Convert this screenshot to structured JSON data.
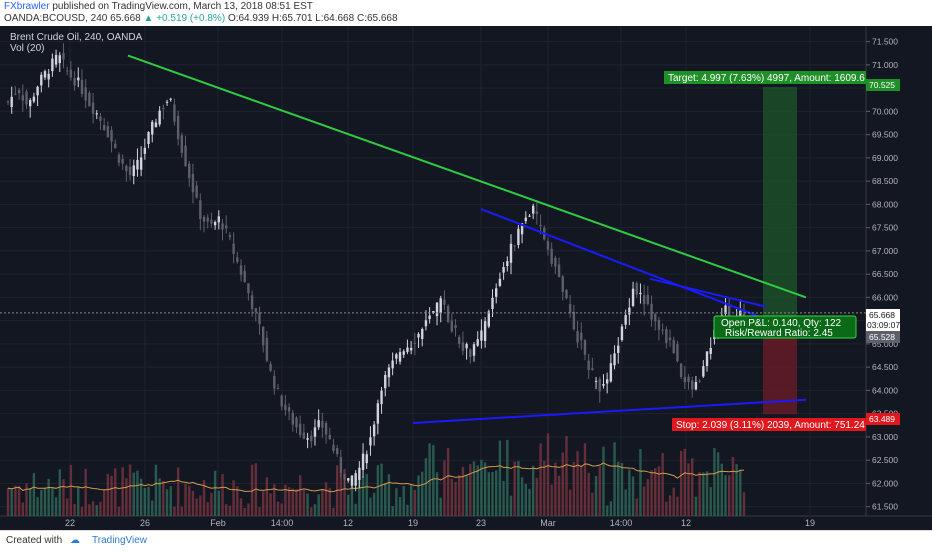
{
  "header": {
    "author": "FXbrawler",
    "published": "published on TradingView.com, March 13, 2018 08:51 EST",
    "symbol": "OANDA:BCOUSD, 240",
    "last": "65.668",
    "change": "▲ +0.519 (+0.8%)",
    "o": "O:64.939",
    "h": "H:65.701",
    "l": "L:64.668",
    "c": "C:65.668"
  },
  "legend": {
    "title": "Brent Crude Oil, 240, OANDA",
    "volume": "Vol (20)"
  },
  "footer": {
    "created": "Created with",
    "brand": "TradingView"
  },
  "colors": {
    "background": "#131722",
    "up": "#d1d4dc",
    "down": "#5d606b",
    "trend_green": "#2ecc40",
    "trend_blue": "#1a1aff",
    "target": "#1f8f27",
    "stop": "#e0181e"
  },
  "chart_data": {
    "type": "candlestick",
    "x_ticks": [
      "22",
      "26",
      "Feb",
      "14:00",
      "12",
      "19",
      "23",
      "Mar",
      "14:00",
      "12",
      "19"
    ],
    "y_ticks": [
      "61.500",
      "62.000",
      "62.500",
      "63.000",
      "63.500",
      "64.000",
      "64.500",
      "65.000",
      "65.500",
      "66.000",
      "66.500",
      "67.000",
      "67.500",
      "68.000",
      "68.500",
      "69.000",
      "69.500",
      "70.000",
      "70.500",
      "71.000",
      "71.500"
    ],
    "ylim": [
      61.3,
      71.75
    ],
    "close_path": [
      70.2,
      70.5,
      70.1,
      70.6,
      70.9,
      71.2,
      70.8,
      70.6,
      70.2,
      69.9,
      69.5,
      69.0,
      68.6,
      68.9,
      69.5,
      70.0,
      70.3,
      69.4,
      68.6,
      67.8,
      67.5,
      67.7,
      67.2,
      66.6,
      66.0,
      65.3,
      64.4,
      63.8,
      63.4,
      63.1,
      63.0,
      63.3,
      62.9,
      62.3,
      62.0,
      62.4,
      63.0,
      64.1,
      64.5,
      64.9,
      65.0,
      65.3,
      65.6,
      65.9,
      65.4,
      65.0,
      64.8,
      65.2,
      65.9,
      66.6,
      67.1,
      67.6,
      67.9,
      67.4,
      66.8,
      66.2,
      65.4,
      64.9,
      64.3,
      64.0,
      64.6,
      65.4,
      66.2,
      66.0,
      65.5,
      65.2,
      64.9,
      64.2,
      64.0,
      64.5,
      65.2,
      65.8,
      65.5,
      65.668
    ],
    "trendlines": [
      {
        "color": "green",
        "from": [
          "26",
          71.2
        ],
        "to": [
          "19",
          66.0
        ]
      },
      {
        "color": "blue",
        "from": [
          "23",
          67.9
        ],
        "to": [
          "19",
          65.2
        ]
      },
      {
        "color": "blue",
        "from": [
          "Mar",
          66.4
        ],
        "to": [
          "12",
          65.8
        ]
      },
      {
        "color": "blue",
        "from": [
          "12",
          63.3
        ],
        "to": [
          "19",
          63.8
        ]
      }
    ],
    "position": {
      "entry": 65.528,
      "target_price": "70.525",
      "stop_price": "63.489",
      "current_price": "65.668",
      "countdown": "03:09:07",
      "target_label": "Target: 4.997 (7.63%) 4997, Amount: 1609.6",
      "stop_label": "Stop: 2.039 (3.11%) 2039, Amount: 751.24",
      "pnl_label": "Open P&L: 0.140, Qty: 122",
      "rr_label": "Risk/Reward Ratio: 2.45"
    }
  }
}
